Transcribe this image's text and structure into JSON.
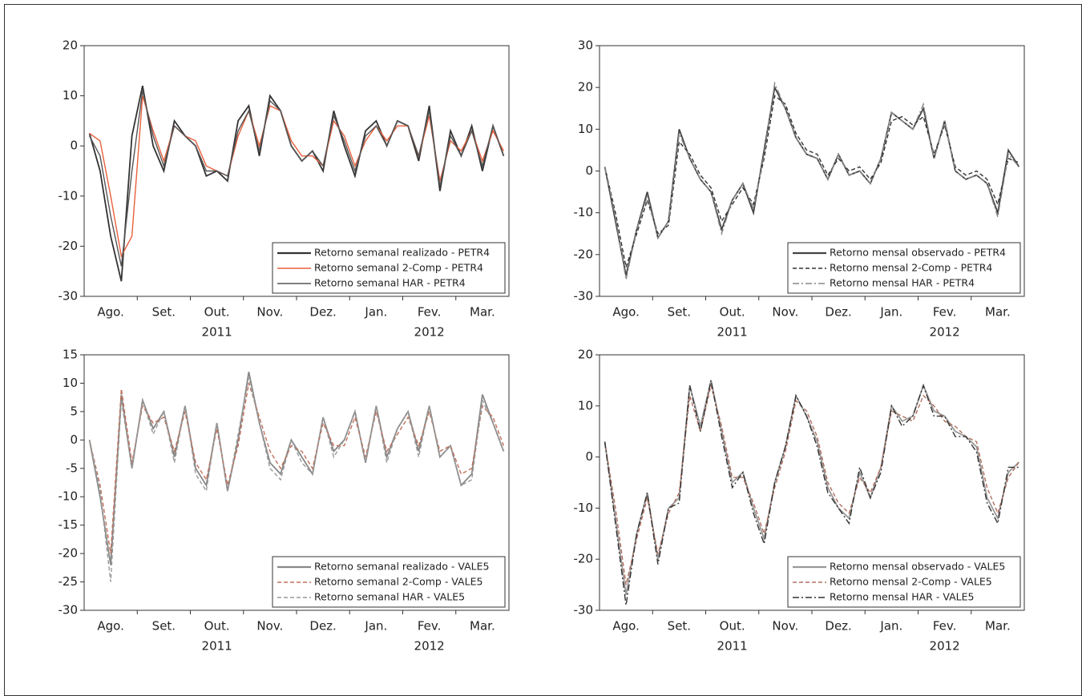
{
  "chart_data": [
    {
      "type": "line",
      "ylim": [
        -30,
        20
      ],
      "yticks": [
        -30,
        -20,
        -10,
        0,
        10,
        20
      ],
      "months": [
        "Ago.",
        "Set.",
        "Out.",
        "Nov.",
        "Dez.",
        "Jan.",
        "Fev.",
        "Mar."
      ],
      "years": [
        "2011",
        "2012"
      ],
      "legend": "lower-right",
      "series": [
        {
          "name": "Retorno semanal realizado - PETR4",
          "color": "#333333",
          "dash": "solid",
          "values": [
            2.5,
            -5,
            -18,
            -27,
            2,
            12,
            0,
            -5,
            5,
            2,
            0,
            -6,
            -5,
            -7,
            5,
            8,
            -2,
            10,
            7,
            0,
            -3,
            -1,
            -5,
            7,
            0,
            -6,
            3,
            5,
            0,
            5,
            4,
            -3,
            8,
            -9,
            3,
            -2,
            4,
            -5,
            4,
            -2
          ]
        },
        {
          "name": "Retorno semanal 2-Comp - PETR4",
          "color": "#e8603c",
          "dash": "solid",
          "values": [
            2.5,
            1,
            -10,
            -22,
            -18,
            10,
            3,
            -3,
            4,
            2,
            1,
            -4,
            -5,
            -6,
            2,
            7,
            0,
            8,
            7,
            1,
            -2,
            -2,
            -4,
            5,
            2,
            -4,
            1,
            4,
            1,
            4,
            4,
            -2,
            6,
            -7,
            1,
            -1,
            3,
            -3,
            3,
            -1
          ]
        },
        {
          "name": "Retorno semanal HAR - PETR4",
          "color": "#555555",
          "dash": "solid",
          "values": [
            2,
            -2,
            -14,
            -24,
            -5,
            11,
            2,
            -4,
            4,
            2,
            0,
            -5,
            -5,
            -6,
            3,
            7,
            -1,
            9,
            7,
            0,
            -3,
            -1,
            -4,
            6,
            1,
            -5,
            2,
            4,
            0,
            5,
            4,
            -2,
            7,
            -8,
            2,
            -2,
            3,
            -4,
            4,
            -2
          ]
        }
      ]
    },
    {
      "type": "line",
      "ylim": [
        -30,
        30
      ],
      "yticks": [
        -30,
        -20,
        -10,
        0,
        10,
        20,
        30
      ],
      "months": [
        "Ago.",
        "Set.",
        "Out.",
        "Nov.",
        "Dez.",
        "Jan.",
        "Fev.",
        "Mar."
      ],
      "years": [
        "2011",
        "2012"
      ],
      "legend": "lower-right",
      "series": [
        {
          "name": "Retorno mensal observado - PETR4",
          "color": "#444444",
          "dash": "solid",
          "values": [
            1,
            -12,
            -25,
            -14,
            -5,
            -16,
            -12,
            10,
            3,
            -2,
            -5,
            -14,
            -7,
            -3,
            -10,
            5,
            20,
            15,
            8,
            4,
            3,
            -2,
            4,
            -1,
            0,
            -3,
            3,
            14,
            12,
            10,
            15,
            3,
            12,
            0,
            -2,
            -1,
            -3,
            -10,
            5,
            1
          ]
        },
        {
          "name": "Retorno mensal 2-Comp - PETR4",
          "color": "#333333",
          "dash": "dashed",
          "values": [
            1,
            -10,
            -23,
            -15,
            -7,
            -15,
            -13,
            7,
            4,
            -1,
            -4,
            -12,
            -8,
            -4,
            -8,
            3,
            18,
            16,
            9,
            5,
            4,
            -1,
            3,
            0,
            1,
            -2,
            2,
            12,
            13,
            11,
            13,
            4,
            11,
            1,
            -1,
            0,
            -2,
            -8,
            3,
            2
          ]
        },
        {
          "name": "Retorno mensal HAR - PETR4",
          "color": "#888888",
          "dash": "dashdot",
          "values": [
            1,
            -11,
            -26,
            -14,
            -6,
            -16,
            -12,
            9,
            3,
            -2,
            -5,
            -15,
            -7,
            -3,
            -9,
            4,
            21,
            15,
            8,
            4,
            3,
            -2,
            4,
            -1,
            0,
            -3,
            3,
            14,
            12,
            10,
            16,
            3,
            12,
            0,
            -2,
            -1,
            -3,
            -11,
            4,
            1
          ]
        }
      ]
    },
    {
      "type": "line",
      "ylim": [
        -30,
        15
      ],
      "yticks": [
        -30,
        -25,
        -20,
        -15,
        -10,
        -5,
        0,
        5,
        10,
        15
      ],
      "months": [
        "Ago.",
        "Set.",
        "Out.",
        "Nov.",
        "Dez.",
        "Jan.",
        "Fev.",
        "Mar."
      ],
      "years": [
        "2011",
        "2012"
      ],
      "legend": "lower-right",
      "series": [
        {
          "name": "Retorno semanal realizado - VALE5",
          "color": "#888888",
          "dash": "solid",
          "values": [
            0,
            -10,
            -22,
            8,
            -5,
            7,
            2,
            5,
            -3,
            6,
            -5,
            -8,
            3,
            -9,
            0,
            12,
            3,
            -4,
            -6,
            0,
            -3,
            -6,
            4,
            -2,
            0,
            5,
            -4,
            6,
            -3,
            2,
            5,
            -2,
            6,
            -3,
            -1,
            -8,
            -6,
            8,
            3,
            -2
          ]
        },
        {
          "name": "Retorno semanal 2-Comp - VALE5",
          "color": "#c0705a",
          "dash": "dashed",
          "values": [
            0,
            -8,
            -20,
            9,
            -4,
            6,
            3,
            4,
            -2,
            5,
            -4,
            -7,
            2,
            -8,
            -1,
            10,
            4,
            -2,
            -5,
            -1,
            -2,
            -5,
            3,
            -1,
            -1,
            4,
            -3,
            5,
            -2,
            1,
            4,
            -1,
            5,
            -2,
            -1,
            -6,
            -5,
            6,
            4,
            -1
          ]
        },
        {
          "name": "Retorno semanal HAR  - VALE5",
          "color": "#999999",
          "dash": "dashed",
          "values": [
            0,
            -9,
            -25,
            7,
            -5,
            7,
            1,
            5,
            -4,
            6,
            -6,
            -9,
            3,
            -9,
            1,
            11,
            3,
            -5,
            -7,
            0,
            -4,
            -6,
            4,
            -3,
            0,
            5,
            -4,
            6,
            -4,
            2,
            5,
            -3,
            6,
            -3,
            -1,
            -8,
            -7,
            7,
            3,
            -2
          ]
        }
      ]
    },
    {
      "type": "line",
      "ylim": [
        -30,
        20
      ],
      "yticks": [
        -30,
        -20,
        -10,
        0,
        10,
        20
      ],
      "months": [
        "Ago.",
        "Set.",
        "Out.",
        "Nov.",
        "Dez.",
        "Jan.",
        "Fev.",
        "Mar."
      ],
      "years": [
        "2011",
        "2012"
      ],
      "legend": "lower-right",
      "series": [
        {
          "name": "Retorno mensal observado - VALE5",
          "color": "#999999",
          "dash": "solid",
          "values": [
            3,
            -12,
            -27,
            -15,
            -7,
            -20,
            -10,
            -8,
            14,
            6,
            15,
            5,
            -5,
            -3,
            -10,
            -16,
            -5,
            2,
            12,
            8,
            3,
            -6,
            -10,
            -12,
            -3,
            -8,
            -2,
            10,
            7,
            8,
            14,
            9,
            8,
            5,
            4,
            2,
            -8,
            -12,
            -3,
            -1
          ]
        },
        {
          "name": "Retorno mensal 2-Comp - VALE5",
          "color": "#b07060",
          "dash": "dashed",
          "values": [
            3,
            -10,
            -25,
            -16,
            -8,
            -19,
            -11,
            -7,
            12,
            5,
            14,
            6,
            -4,
            -4,
            -9,
            -15,
            -6,
            1,
            11,
            9,
            4,
            -5,
            -9,
            -11,
            -4,
            -7,
            -2,
            9,
            8,
            7,
            12,
            10,
            7,
            6,
            4,
            3,
            -6,
            -11,
            -4,
            -1
          ]
        },
        {
          "name": "Retorno mensal HAR - VALE5",
          "color": "#333333",
          "dash": "dashdot",
          "values": [
            3,
            -13,
            -29,
            -15,
            -7,
            -21,
            -10,
            -9,
            14,
            5,
            15,
            4,
            -6,
            -3,
            -11,
            -17,
            -5,
            2,
            12,
            8,
            2,
            -7,
            -10,
            -13,
            -2,
            -8,
            -3,
            10,
            6,
            8,
            14,
            8,
            8,
            4,
            4,
            1,
            -9,
            -13,
            -2,
            -2
          ]
        }
      ]
    }
  ]
}
